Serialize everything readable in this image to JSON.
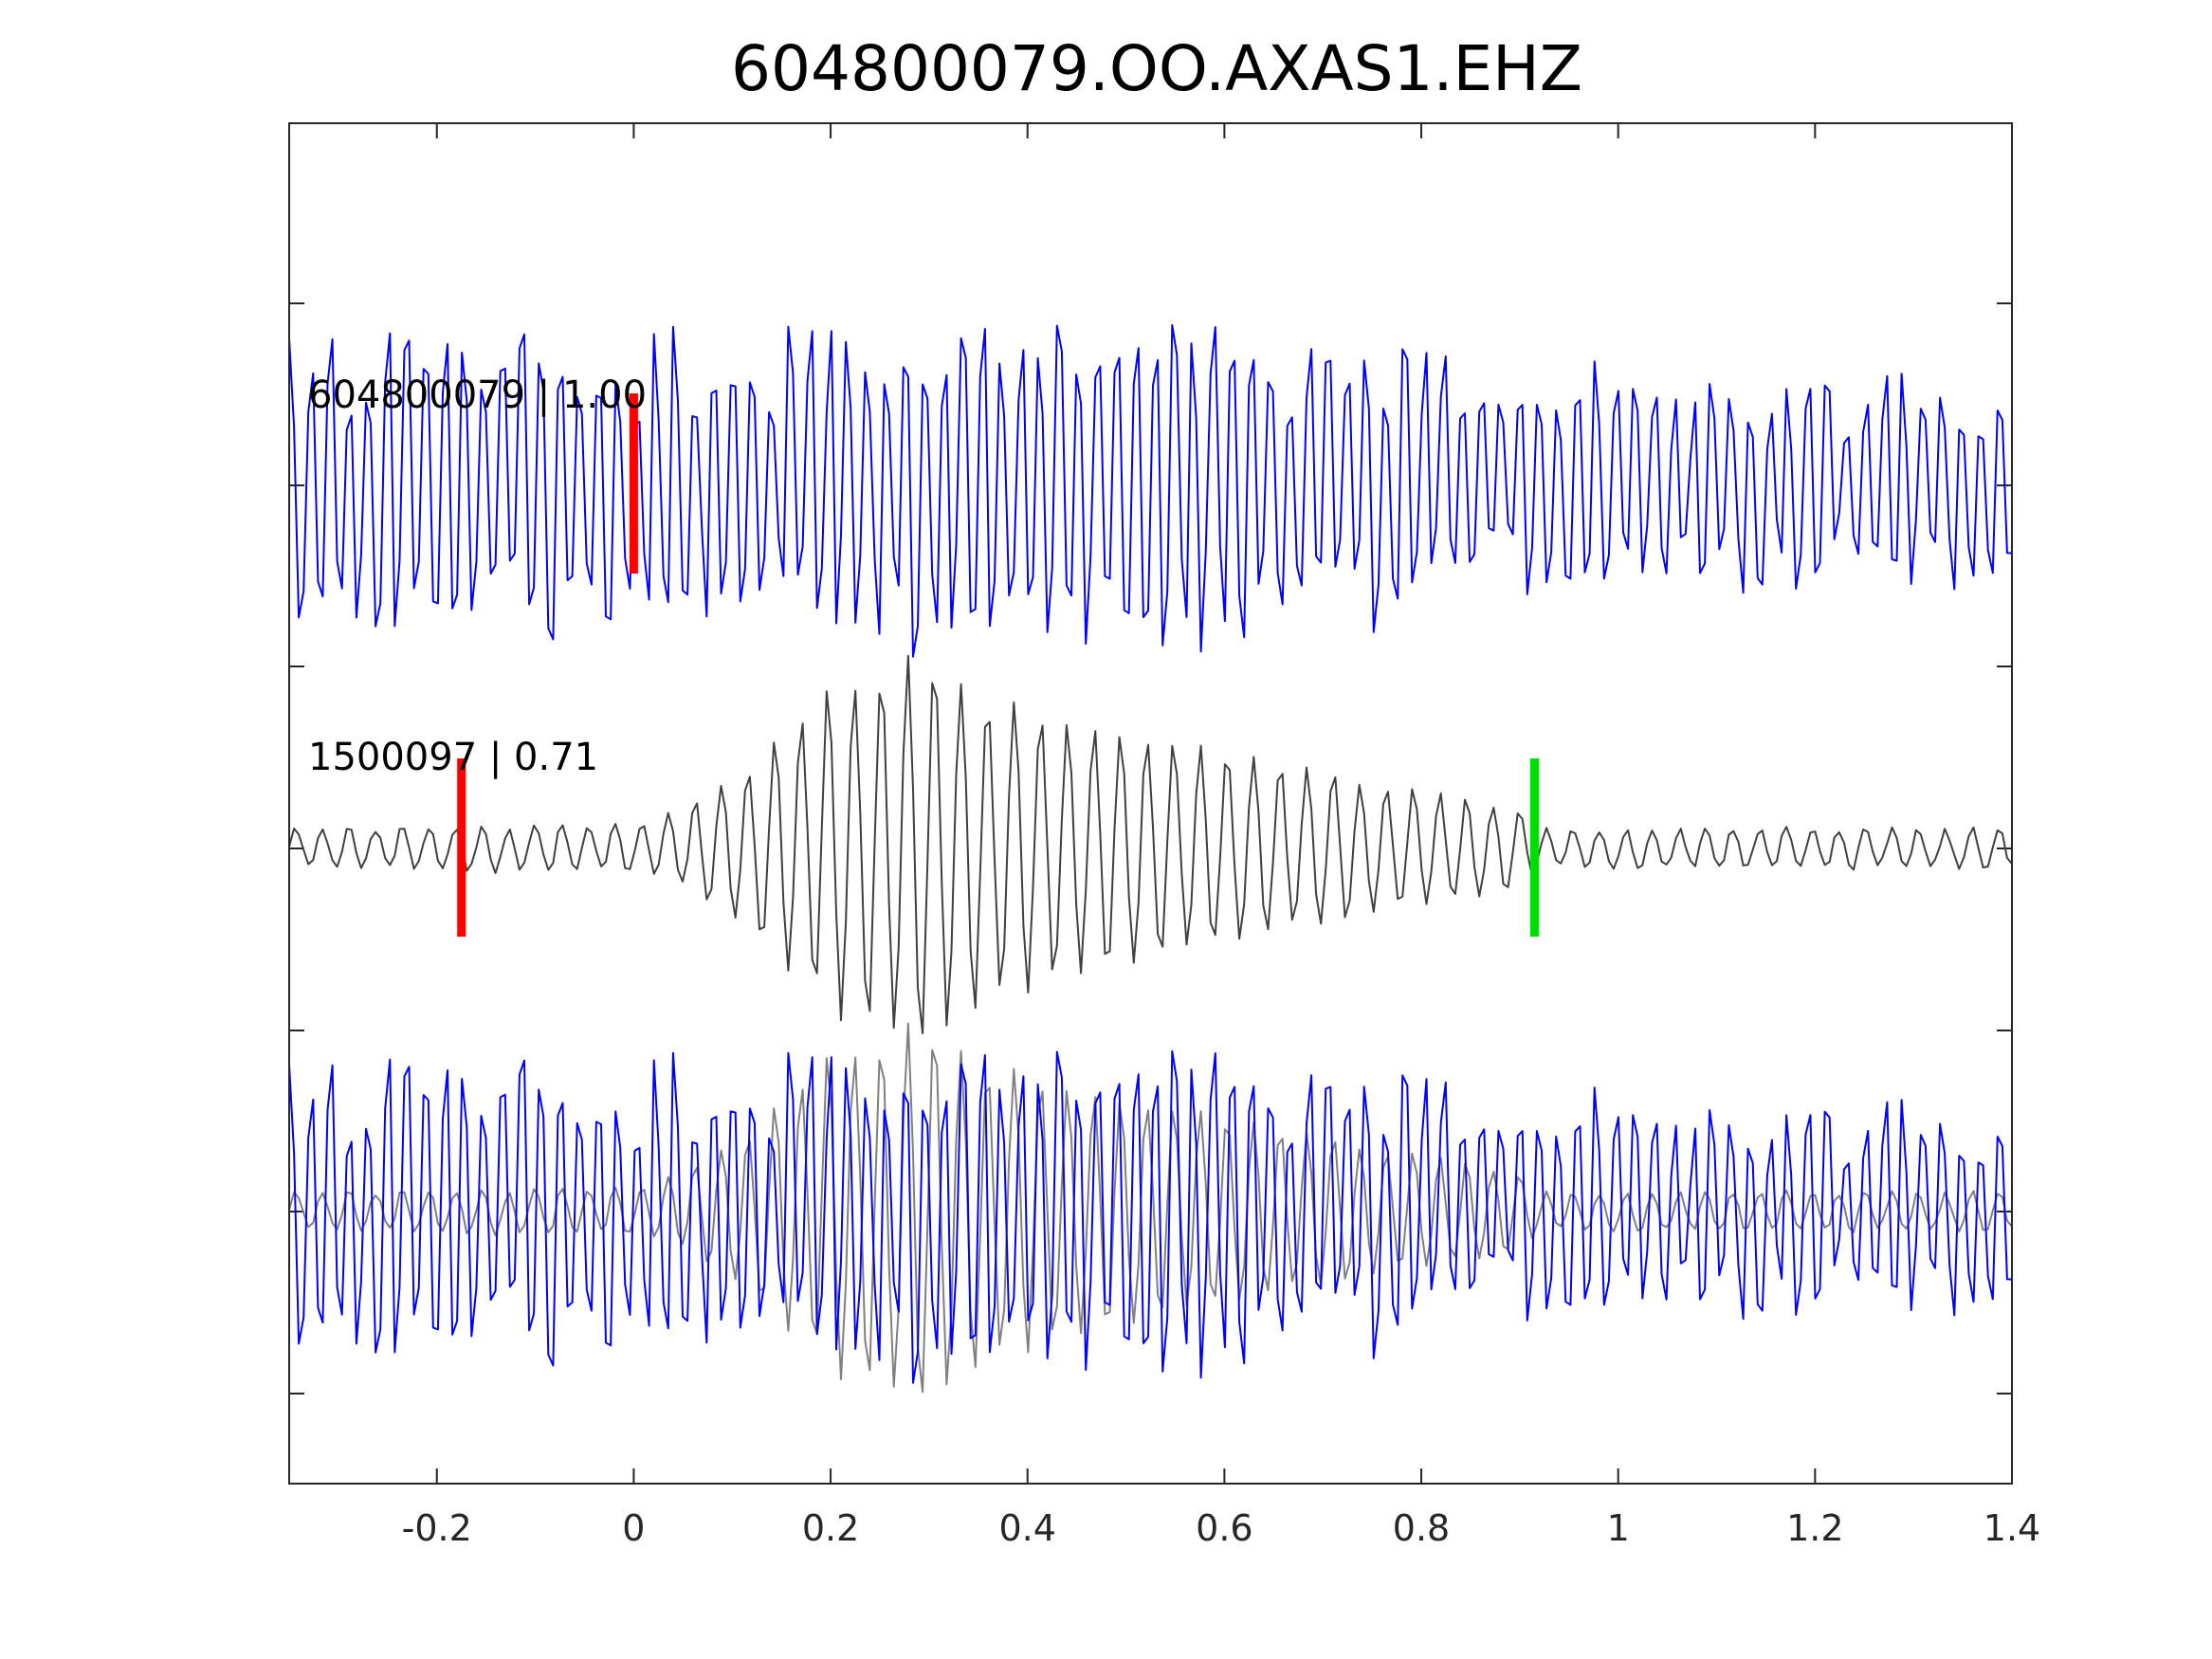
{
  "chart_data": {
    "type": "line",
    "title": "604800079.OO.AXAS1.EHZ",
    "xlabel": "",
    "ylabel": "",
    "xlim": [
      -0.35,
      1.4
    ],
    "x_ticks": [
      -0.2,
      0,
      0.2,
      0.4,
      0.6,
      0.8,
      1,
      1.2,
      1.4
    ],
    "x_tick_labels": [
      "-0.2",
      "0",
      "0.2",
      "0.4",
      "0.6",
      "0.8",
      "1",
      "1.2",
      "1.4"
    ],
    "grid": false,
    "legend": "none",
    "series": [
      {
        "label": "604800079 | 1.00",
        "color": "#0000ff",
        "role": "target trace (top)",
        "picks": [
          {
            "x": 0.0,
            "color": "#ff0000"
          }
        ],
        "envelope": [
          [
            -0.35,
            0.75
          ],
          [
            0.1,
            0.8
          ],
          [
            0.35,
            0.85
          ],
          [
            0.6,
            0.8
          ],
          [
            0.9,
            0.6
          ],
          [
            1.4,
            0.5
          ]
        ]
      },
      {
        "label": "1500097 | 0.71",
        "color": "#404040",
        "role": "template trace (middle)",
        "picks": [
          {
            "x": -0.175,
            "color": "#ff0000"
          },
          {
            "x": 0.915,
            "color": "#00dd00"
          }
        ],
        "envelope": [
          [
            -0.35,
            0.1
          ],
          [
            0.0,
            0.12
          ],
          [
            0.05,
            0.2
          ],
          [
            0.12,
            0.45
          ],
          [
            0.2,
            0.85
          ],
          [
            0.3,
            1.0
          ],
          [
            0.36,
            0.8
          ],
          [
            0.5,
            0.6
          ],
          [
            0.7,
            0.4
          ],
          [
            0.9,
            0.2
          ],
          [
            0.92,
            0.1
          ],
          [
            1.4,
            0.1
          ]
        ]
      },
      {
        "label": "",
        "color": "#0000ff",
        "role": "overlay of target (bottom)",
        "picks": []
      },
      {
        "label": "",
        "color": "#808080",
        "role": "overlay of template (bottom)",
        "picks": []
      }
    ]
  }
}
